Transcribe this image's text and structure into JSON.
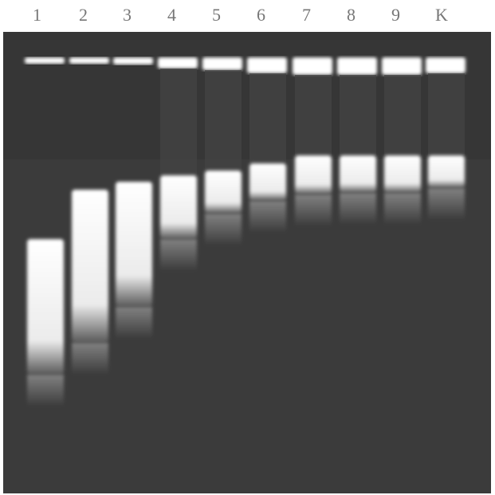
{
  "lane_labels": [
    "1",
    "2",
    "3",
    "4",
    "5",
    "6",
    "7",
    "8",
    "9",
    "K"
  ]
}
